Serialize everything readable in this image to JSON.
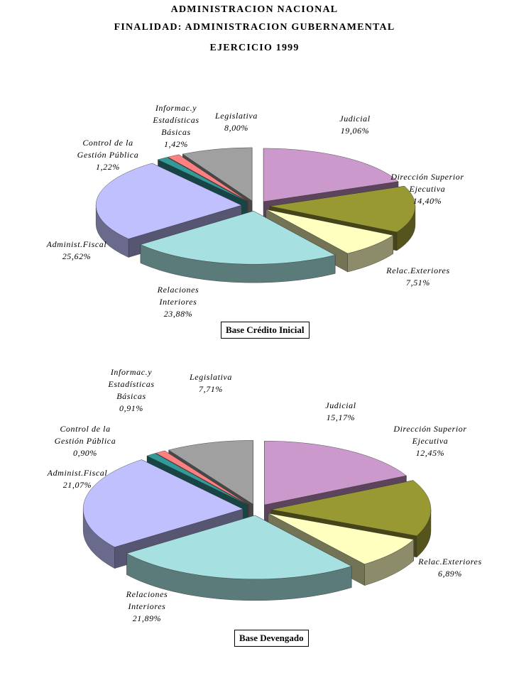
{
  "header": {
    "line1": "ADMINISTRACION NACIONAL",
    "line2": "FINALIDAD: ADMINISTRACION GUBERNAMENTAL",
    "line3": "EJERCICIO 1999"
  },
  "colors": {
    "Judicial": "#cc99cc",
    "Dirección Superior Ejecutiva": "#999933",
    "Relac.Exteriores": "#ffffc0",
    "Relaciones Interiores": "#a6e0e0",
    "Administ.Fiscal": "#c0c0ff",
    "Control de la Gestión Pública": "#339999",
    "Informac.y Estadísticas Básicas": "#ff8080",
    "Legislativa": "#a0a0a0"
  },
  "chart_data": [
    {
      "type": "pie",
      "title": "Base Crédito Inicial",
      "categories": [
        "Judicial",
        "Dirección Superior Ejecutiva",
        "Relac.Exteriores",
        "Relaciones Interiores",
        "Administ.Fiscal",
        "Control de la Gestión Pública",
        "Informac.y Estadísticas Básicas",
        "Legislativa"
      ],
      "values": [
        19.06,
        14.4,
        7.51,
        23.88,
        25.62,
        1.22,
        1.42,
        8.0
      ],
      "value_labels": [
        "19,06%",
        "14,40%",
        "7,51%",
        "23,88%",
        "25,62%",
        "1,22%",
        "1,42%",
        "8,00%"
      ],
      "label_lines": [
        [
          "Judicial"
        ],
        [
          "Dirección Superior",
          "Ejecutiva"
        ],
        [
          "Relac.Exteriores"
        ],
        [
          "Relaciones",
          "Interiores"
        ],
        [
          "Administ.Fiscal"
        ],
        [
          "Control de la",
          "Gestión Pública"
        ],
        [
          "Informac.y",
          "Estadísticas",
          "Básicas"
        ],
        [
          "Legislativa"
        ]
      ],
      "legend": "none",
      "style": "3d-exploded"
    },
    {
      "type": "pie",
      "title": "Base Devengado",
      "categories": [
        "Judicial",
        "Dirección Superior Ejecutiva",
        "Relac.Exteriores",
        "Relaciones Interiores",
        "Administ.Fiscal",
        "Control de la Gestión Pública",
        "Informac.y Estadísticas Básicas",
        "Legislativa"
      ],
      "values": [
        15.17,
        12.45,
        6.89,
        21.89,
        21.07,
        0.9,
        0.91,
        7.71
      ],
      "value_labels": [
        "15,17%",
        "12,45%",
        "6,89%",
        "21,89%",
        "21,07%",
        "0,90%",
        "0,91%",
        "7,71%"
      ],
      "label_lines": [
        [
          "Judicial"
        ],
        [
          "Dirección Superior",
          "Ejecutiva"
        ],
        [
          "Relac.Exteriores"
        ],
        [
          "Relaciones",
          "Interiores"
        ],
        [
          "Administ.Fiscal"
        ],
        [
          "Control de la",
          "Gestión Pública"
        ],
        [
          "Informac.y",
          "Estadísticas",
          "Básicas"
        ],
        [
          "Legislativa"
        ]
      ],
      "legend": "none",
      "style": "3d-exploded"
    }
  ]
}
